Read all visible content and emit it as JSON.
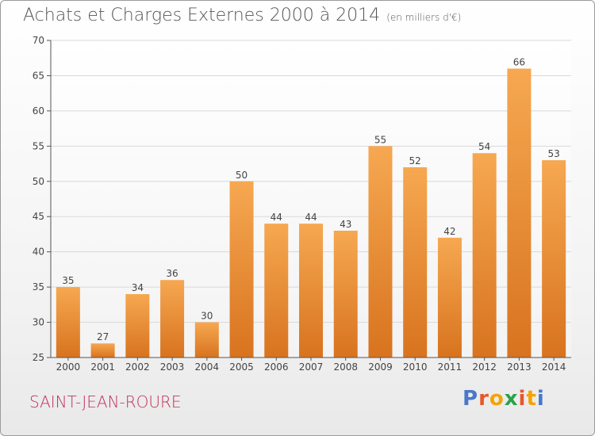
{
  "header": {
    "title": "Achats et Charges Externes 2000 à 2014",
    "subtitle": "(en milliers d'€)"
  },
  "footer": {
    "location": "SAINT-JEAN-ROURE",
    "logo": "Proxiti"
  },
  "colors": {
    "bar_top": "#f6a851",
    "bar_bottom": "#d8731f",
    "axis_text": "#444444",
    "grid": "#d9d9d9",
    "location": "#c1325a",
    "logo_letters": [
      "#4a78c8",
      "#e8572a",
      "#f5a300",
      "#2aa24a",
      "#e8572a",
      "#f5a300",
      "#4a78c8"
    ]
  },
  "chart_data": {
    "type": "bar",
    "categories": [
      "2000",
      "2001",
      "2002",
      "2003",
      "2004",
      "2005",
      "2006",
      "2007",
      "2008",
      "2009",
      "2010",
      "2011",
      "2012",
      "2013",
      "2014"
    ],
    "values": [
      35,
      27,
      34,
      36,
      30,
      50,
      44,
      44,
      43,
      55,
      52,
      42,
      54,
      66,
      53
    ],
    "yticks": [
      25,
      30,
      35,
      40,
      45,
      50,
      55,
      60,
      65,
      70
    ],
    "ylim": [
      25,
      70
    ],
    "grid": true,
    "title": "Achats et Charges Externes 2000 à 2014",
    "xlabel": "",
    "ylabel": ""
  }
}
